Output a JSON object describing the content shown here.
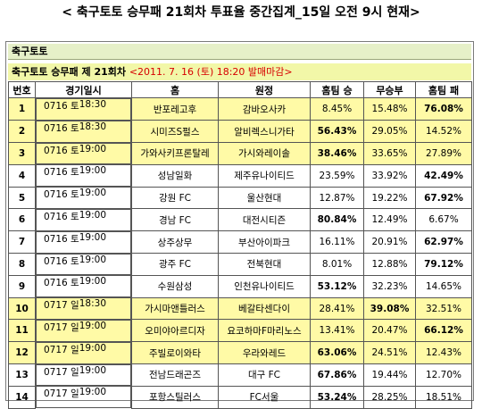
{
  "title": "< 축구토토 승무패 21회차 투표율 중간집계_15일 오전 9시 현재>",
  "section_label": "축구토토",
  "round_label": "축구토토 승무패 제 21회차",
  "round_date": "<2011. 7. 16 (토) 18:20 발매마감>",
  "columns": [
    "번호",
    "경기일시",
    "홈",
    "원정",
    "홈팀 승",
    "무승부",
    "홈팀 패"
  ],
  "rows": [
    {
      "no": "1",
      "date": "0716 토",
      "time": "18:30",
      "home": "반포레고후",
      "away": "감바오사카",
      "win": "8.45%",
      "draw": "15.48%",
      "loss": "76.08%",
      "bold": "loss",
      "hl": true
    },
    {
      "no": "2",
      "date": "0716 토",
      "time": "18:30",
      "home": "시미즈S펄스",
      "away": "알비렉스니가타",
      "win": "56.43%",
      "draw": "29.05%",
      "loss": "14.52%",
      "bold": "win",
      "hl": true
    },
    {
      "no": "3",
      "date": "0716 토",
      "time": "19:00",
      "home": "가와사키프론탈레",
      "away": "가시와레이솔",
      "win": "38.46%",
      "draw": "33.65%",
      "loss": "27.89%",
      "bold": "win",
      "hl": true
    },
    {
      "no": "4",
      "date": "0716 토",
      "time": "19:00",
      "home": "성남일화",
      "away": "제주유나이티드",
      "win": "23.59%",
      "draw": "33.92%",
      "loss": "42.49%",
      "bold": "loss",
      "hl": false
    },
    {
      "no": "5",
      "date": "0716 토",
      "time": "19:00",
      "home": "강원 FC",
      "away": "울산현대",
      "win": "12.87%",
      "draw": "19.22%",
      "loss": "67.92%",
      "bold": "loss",
      "hl": false
    },
    {
      "no": "6",
      "date": "0716 토",
      "time": "19:00",
      "home": "경남 FC",
      "away": "대전시티즌",
      "win": "80.84%",
      "draw": "12.49%",
      "loss": "6.67%",
      "bold": "win",
      "hl": false
    },
    {
      "no": "7",
      "date": "0716 토",
      "time": "19:00",
      "home": "상주상무",
      "away": "부산아이파크",
      "win": "16.11%",
      "draw": "20.91%",
      "loss": "62.97%",
      "bold": "loss",
      "hl": false
    },
    {
      "no": "8",
      "date": "0716 토",
      "time": "19:00",
      "home": "광주 FC",
      "away": "전북현대",
      "win": "8.01%",
      "draw": "12.88%",
      "loss": "79.12%",
      "bold": "loss",
      "hl": false
    },
    {
      "no": "9",
      "date": "0716 토",
      "time": "19:00",
      "home": "수원삼성",
      "away": "인천유나이티드",
      "win": "53.12%",
      "draw": "32.23%",
      "loss": "14.65%",
      "bold": "win",
      "hl": false
    },
    {
      "no": "10",
      "date": "0717 일",
      "time": "18:30",
      "home": "가시마앤틀러스",
      "away": "베갈타센다이",
      "win": "28.41%",
      "draw": "39.08%",
      "loss": "32.51%",
      "bold": "draw",
      "hl": true
    },
    {
      "no": "11",
      "date": "0717 일",
      "time": "19:00",
      "home": "오미야아르디자",
      "away": "요코하마F마리노스",
      "win": "13.41%",
      "draw": "20.47%",
      "loss": "66.12%",
      "bold": "loss",
      "hl": true
    },
    {
      "no": "12",
      "date": "0717 일",
      "time": "19:00",
      "home": "주빌로이와타",
      "away": "우라와레드",
      "win": "63.06%",
      "draw": "24.51%",
      "loss": "12.43%",
      "bold": "win",
      "hl": true
    },
    {
      "no": "13",
      "date": "0717 일",
      "time": "19:00",
      "home": "전남드래곤즈",
      "away": "대구 FC",
      "win": "67.86%",
      "draw": "19.44%",
      "loss": "12.70%",
      "bold": "win",
      "hl": false
    },
    {
      "no": "14",
      "date": "0717 일",
      "time": "19:00",
      "home": "포항스틸러스",
      "away": "FC서울",
      "win": "53.24%",
      "draw": "28.25%",
      "loss": "18.51%",
      "bold": "win",
      "hl": false
    }
  ],
  "colors": {
    "highlight_row": "#fffaa6",
    "header_band": "#e6f0c8",
    "round_band": "#f2f7a8",
    "date_red": "#d60000"
  }
}
